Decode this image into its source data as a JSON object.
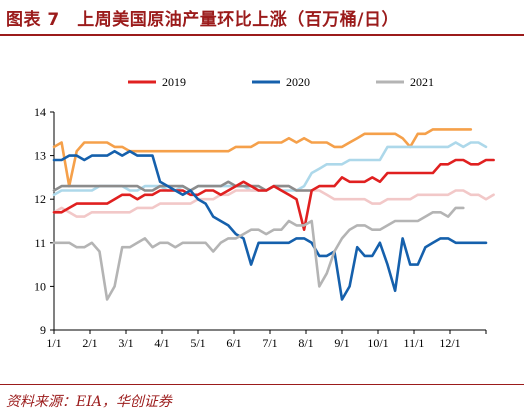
{
  "header": {
    "title": "图表 7　上周美国原油产量环比上涨（百万桶/日）"
  },
  "footer": {
    "source": "资料来源：EIA，华创证券"
  },
  "chart_data": {
    "type": "line",
    "title": "",
    "xlabel": "",
    "ylabel": "",
    "ylim": [
      9,
      14
    ],
    "yticks": [
      9,
      10,
      11,
      12,
      13,
      14
    ],
    "x_tick_labels": [
      "1/1",
      "2/1",
      "3/1",
      "4/1",
      "5/1",
      "6/1",
      "7/1",
      "8/1",
      "9/1",
      "10/1",
      "11/1",
      "12/1"
    ],
    "grid": false,
    "legend_position": "top",
    "colors": {
      "2019": "#e02020",
      "2020": "#1560ac",
      "2021": "#b4b4b4",
      "orange": "#f5a04a",
      "lightblue": "#add8ea",
      "pink": "#f2c8c8",
      "darkgray": "#8c8c8c"
    },
    "series": [
      {
        "name": "2019",
        "color": "#e02020",
        "values": [
          11.7,
          11.7,
          11.8,
          11.9,
          11.9,
          11.9,
          11.9,
          11.9,
          12.0,
          12.1,
          12.1,
          12.0,
          12.1,
          12.1,
          12.2,
          12.2,
          12.2,
          12.2,
          12.1,
          12.1,
          12.2,
          12.2,
          12.1,
          12.2,
          12.3,
          12.4,
          12.3,
          12.2,
          12.2,
          12.3,
          12.2,
          12.1,
          12.0,
          11.3,
          12.2,
          12.3,
          12.3,
          12.3,
          12.5,
          12.4,
          12.4,
          12.4,
          12.5,
          12.4,
          12.6,
          12.6,
          12.6,
          12.6,
          12.6,
          12.6,
          12.6,
          12.8,
          12.8,
          12.9,
          12.9,
          12.8,
          12.8,
          12.9,
          12.9
        ]
      },
      {
        "name": "2020",
        "color": "#1560ac",
        "values": [
          12.9,
          12.9,
          13.0,
          13.0,
          12.9,
          13.0,
          13.0,
          13.0,
          13.1,
          13.0,
          13.1,
          13.0,
          13.0,
          13.0,
          12.4,
          12.3,
          12.2,
          12.1,
          12.2,
          12.0,
          11.9,
          11.6,
          11.5,
          11.4,
          11.2,
          11.1,
          10.5,
          11.0,
          11.0,
          11.0,
          11.0,
          11.0,
          11.1,
          11.1,
          11.0,
          10.7,
          10.7,
          10.8,
          9.7,
          10.0,
          10.9,
          10.7,
          10.7,
          11.0,
          10.5,
          9.9,
          11.1,
          10.5,
          10.5,
          10.9,
          11.0,
          11.1,
          11.1,
          11.0,
          11.0,
          11.0,
          11.0,
          11.0
        ]
      },
      {
        "name": "2021",
        "color": "#b4b4b4",
        "values": [
          11.0,
          11.0,
          11.0,
          10.9,
          10.9,
          11.0,
          10.8,
          9.7,
          10.0,
          10.9,
          10.9,
          11.0,
          11.1,
          10.9,
          11.0,
          11.0,
          10.9,
          11.0,
          11.0,
          11.0,
          11.0,
          10.8,
          11.0,
          11.1,
          11.1,
          11.2,
          11.3,
          11.3,
          11.2,
          11.3,
          11.3,
          11.5,
          11.4,
          11.4,
          11.5,
          10.0,
          10.3,
          10.8,
          11.1,
          11.3,
          11.4,
          11.4,
          11.3,
          11.3,
          11.4,
          11.5,
          11.5,
          11.5,
          11.5,
          11.6,
          11.7,
          11.7,
          11.6,
          11.8,
          11.8
        ]
      },
      {
        "name": "",
        "color": "#f5a04a",
        "values": [
          13.2,
          13.3,
          12.3,
          13.1,
          13.3,
          13.3,
          13.3,
          13.3,
          13.2,
          13.2,
          13.1,
          13.1,
          13.1,
          13.1,
          13.1,
          13.1,
          13.1,
          13.1,
          13.1,
          13.1,
          13.1,
          13.1,
          13.1,
          13.1,
          13.2,
          13.2,
          13.2,
          13.3,
          13.3,
          13.3,
          13.3,
          13.4,
          13.3,
          13.4,
          13.3,
          13.3,
          13.3,
          13.2,
          13.2,
          13.3,
          13.4,
          13.5,
          13.5,
          13.5,
          13.5,
          13.5,
          13.4,
          13.2,
          13.5,
          13.5,
          13.6,
          13.6,
          13.6,
          13.6,
          13.6,
          13.6
        ]
      },
      {
        "name": "",
        "color": "#add8ea",
        "values": [
          12.1,
          12.2,
          12.2,
          12.2,
          12.2,
          12.2,
          12.3,
          12.3,
          12.3,
          12.3,
          12.2,
          12.2,
          12.3,
          12.3,
          12.3,
          12.2,
          12.2,
          12.3,
          12.2,
          12.3,
          12.3,
          12.3,
          12.3,
          12.3,
          12.3,
          12.3,
          12.2,
          12.2,
          12.2,
          12.3,
          12.2,
          12.2,
          12.2,
          12.3,
          12.6,
          12.7,
          12.8,
          12.8,
          12.8,
          12.9,
          12.9,
          12.9,
          12.9,
          12.9,
          13.2,
          13.2,
          13.2,
          13.2,
          13.2,
          13.2,
          13.2,
          13.2,
          13.2,
          13.3,
          13.2,
          13.3,
          13.3,
          13.2
        ]
      },
      {
        "name": "",
        "color": "#f2c8c8",
        "values": [
          11.7,
          11.8,
          11.7,
          11.6,
          11.6,
          11.7,
          11.7,
          11.7,
          11.7,
          11.7,
          11.7,
          11.8,
          11.8,
          11.8,
          11.9,
          11.9,
          11.9,
          11.9,
          11.9,
          12.0,
          12.0,
          12.0,
          12.1,
          12.1,
          12.2,
          12.2,
          12.2,
          12.2,
          12.2,
          12.3,
          12.3,
          12.3,
          12.2,
          12.2,
          12.2,
          12.2,
          12.1,
          12.0,
          12.0,
          12.0,
          12.0,
          12.0,
          11.9,
          11.9,
          12.0,
          12.0,
          12.0,
          12.0,
          12.1,
          12.1,
          12.1,
          12.1,
          12.1,
          12.2,
          12.2,
          12.1,
          12.1,
          12.0,
          12.1
        ]
      },
      {
        "name": "",
        "color": "#8c8c8c",
        "values": [
          12.2,
          12.3,
          12.3,
          12.3,
          12.3,
          12.3,
          12.3,
          12.3,
          12.3,
          12.3,
          12.3,
          12.3,
          12.2,
          12.2,
          12.3,
          12.3,
          12.3,
          12.3,
          12.2,
          12.3,
          12.3,
          12.3,
          12.3,
          12.4,
          12.3,
          12.3,
          12.3,
          12.3,
          12.2,
          12.3,
          12.3,
          12.3,
          12.2,
          12.2,
          12.2
        ]
      }
    ]
  }
}
